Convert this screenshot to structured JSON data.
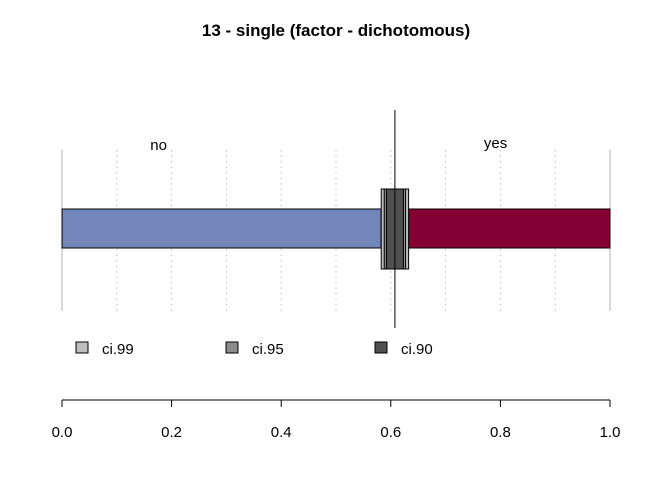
{
  "chart_data": {
    "type": "bar",
    "title": "13 - single (factor - dichotomous)",
    "xlim": [
      0,
      1
    ],
    "x_ticks": [
      "0.0",
      "0.2",
      "0.4",
      "0.6",
      "0.8",
      "1.0"
    ],
    "categories": [
      "no",
      "yes"
    ],
    "split": 0.5825,
    "point_estimate": 0.6075,
    "segments": [
      {
        "name": "no",
        "from": 0,
        "to": 0.5825,
        "color": "#7286BA"
      },
      {
        "name": "yes",
        "from": 0.5825,
        "to": 1.0,
        "color": "#840032"
      }
    ],
    "intervals": [
      {
        "name": "ci.99",
        "low": 0.5825,
        "high": 0.6325,
        "color": "#BEBEBE"
      },
      {
        "name": "ci.95",
        "low": 0.588,
        "high": 0.627,
        "color": "#8C8C8C"
      },
      {
        "name": "ci.90",
        "low": 0.592,
        "high": 0.623,
        "color": "#505050"
      }
    ],
    "grid": true,
    "legend": "bottom-left, horizontal"
  }
}
